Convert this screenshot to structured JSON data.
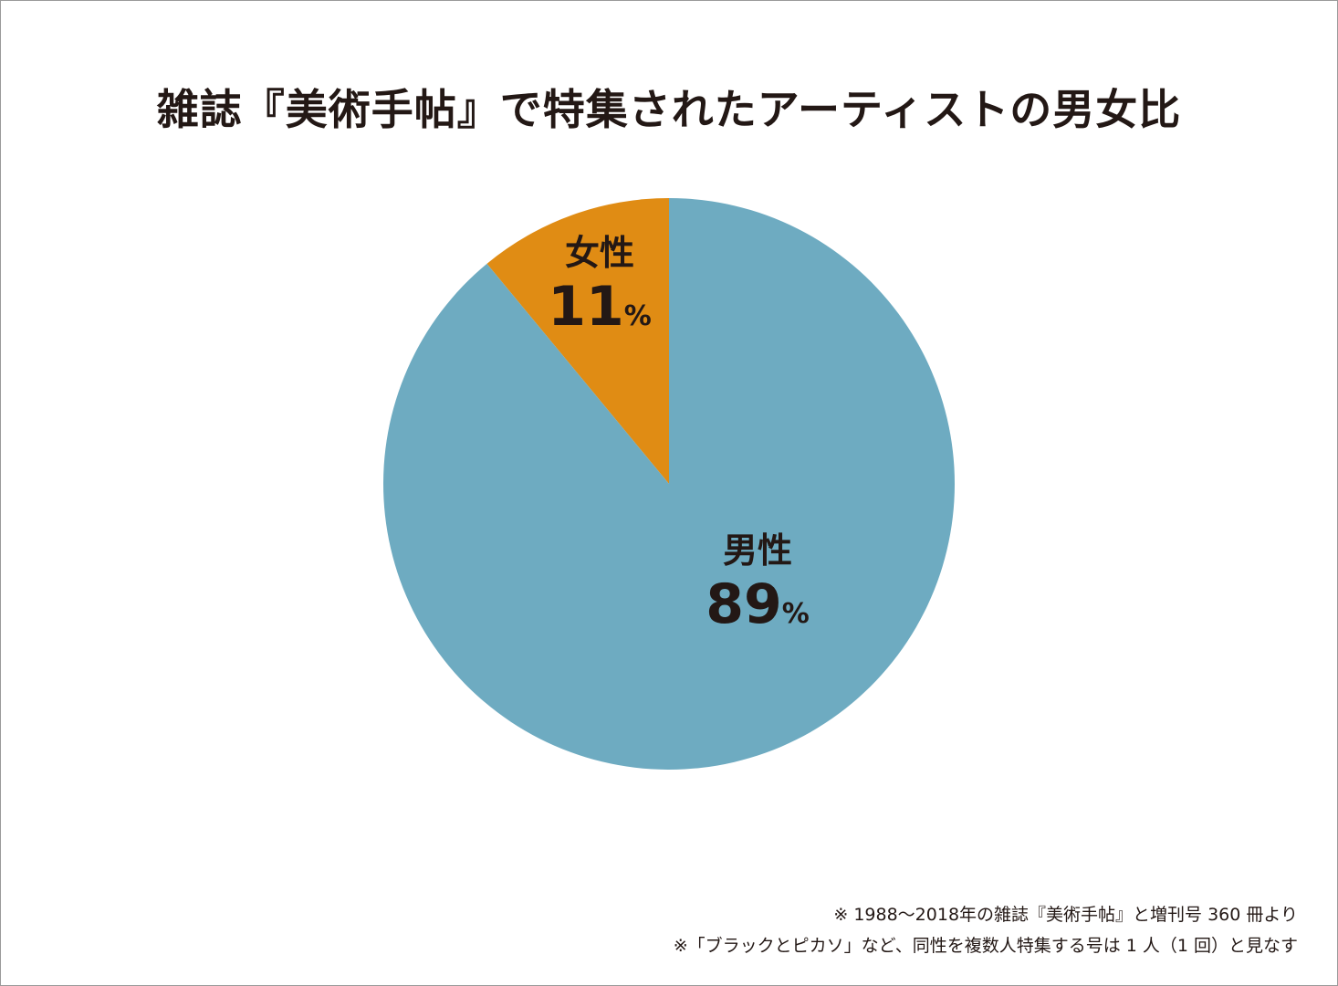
{
  "chart_data": {
    "type": "pie",
    "title": "雑誌『美術手帖』で特集されたアーティストの男女比",
    "slices": [
      {
        "label": "女性",
        "value": 11,
        "display": "11",
        "unit": "%",
        "color": "#e08c14"
      },
      {
        "label": "男性",
        "value": 89,
        "display": "89",
        "unit": "%",
        "color": "#6eabc1"
      }
    ],
    "start": "12 o'clock",
    "direction": "counterclockwise for first slice"
  },
  "notes": [
    "※ 1988〜2018年の雑誌『美術手帖』と増刊号 360 冊より",
    "※「ブラックとピカソ」など、同性を複数人特集する号は 1 人（1 回）と見なす"
  ]
}
